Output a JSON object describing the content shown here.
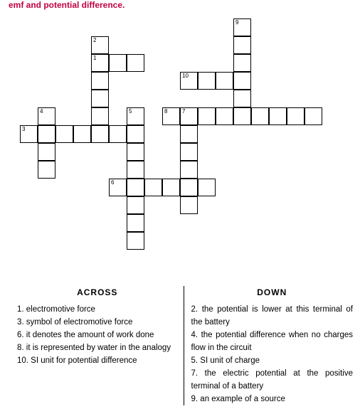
{
  "header_fragment": "emf and potential difference.",
  "grid": {
    "cell_size": 25,
    "cells": [
      {
        "r": 0,
        "c": 12,
        "n": "9"
      },
      {
        "r": 1,
        "c": 4,
        "n": "2"
      },
      {
        "r": 1,
        "c": 12
      },
      {
        "r": 2,
        "c": 4,
        "n": "1"
      },
      {
        "r": 2,
        "c": 5
      },
      {
        "r": 2,
        "c": 6
      },
      {
        "r": 2,
        "c": 12
      },
      {
        "r": 3,
        "c": 4
      },
      {
        "r": 3,
        "c": 9,
        "n": "10"
      },
      {
        "r": 3,
        "c": 10
      },
      {
        "r": 3,
        "c": 11
      },
      {
        "r": 3,
        "c": 12
      },
      {
        "r": 4,
        "c": 4
      },
      {
        "r": 4,
        "c": 12
      },
      {
        "r": 5,
        "c": 1,
        "n": "4"
      },
      {
        "r": 5,
        "c": 4
      },
      {
        "r": 5,
        "c": 6,
        "n": "5"
      },
      {
        "r": 5,
        "c": 8,
        "n": "8"
      },
      {
        "r": 5,
        "c": 9,
        "n": "7"
      },
      {
        "r": 5,
        "c": 10
      },
      {
        "r": 5,
        "c": 11
      },
      {
        "r": 5,
        "c": 12
      },
      {
        "r": 5,
        "c": 13
      },
      {
        "r": 5,
        "c": 14
      },
      {
        "r": 5,
        "c": 15
      },
      {
        "r": 5,
        "c": 16
      },
      {
        "r": 6,
        "c": 0,
        "n": "3"
      },
      {
        "r": 6,
        "c": 1
      },
      {
        "r": 6,
        "c": 2
      },
      {
        "r": 6,
        "c": 3
      },
      {
        "r": 6,
        "c": 4
      },
      {
        "r": 6,
        "c": 5
      },
      {
        "r": 6,
        "c": 6
      },
      {
        "r": 6,
        "c": 9
      },
      {
        "r": 7,
        "c": 1
      },
      {
        "r": 7,
        "c": 6
      },
      {
        "r": 7,
        "c": 9
      },
      {
        "r": 8,
        "c": 1
      },
      {
        "r": 8,
        "c": 6
      },
      {
        "r": 8,
        "c": 9
      },
      {
        "r": 9,
        "c": 5,
        "n": "6"
      },
      {
        "r": 9,
        "c": 6
      },
      {
        "r": 9,
        "c": 7
      },
      {
        "r": 9,
        "c": 8
      },
      {
        "r": 9,
        "c": 9
      },
      {
        "r": 9,
        "c": 10
      },
      {
        "r": 10,
        "c": 6
      },
      {
        "r": 10,
        "c": 9
      },
      {
        "r": 11,
        "c": 6
      },
      {
        "r": 12,
        "c": 6
      }
    ]
  },
  "clues": {
    "across": {
      "heading": "ACROSS",
      "items": [
        "1. electromotive force",
        "3. symbol of electromotive force",
        "6. it denotes the amount of work done",
        "8. it is represented by water in the analogy",
        "10. SI unit for potential difference"
      ]
    },
    "down": {
      "heading": "DOWN",
      "items": [
        "2. the potential is lower at this terminal of the battery",
        "4. the potential difference when no charges flow in the circuit",
        "5. SI unit of charge",
        "7. the electric potential at the positive terminal of a battery",
        "9. an example of a source"
      ]
    }
  }
}
